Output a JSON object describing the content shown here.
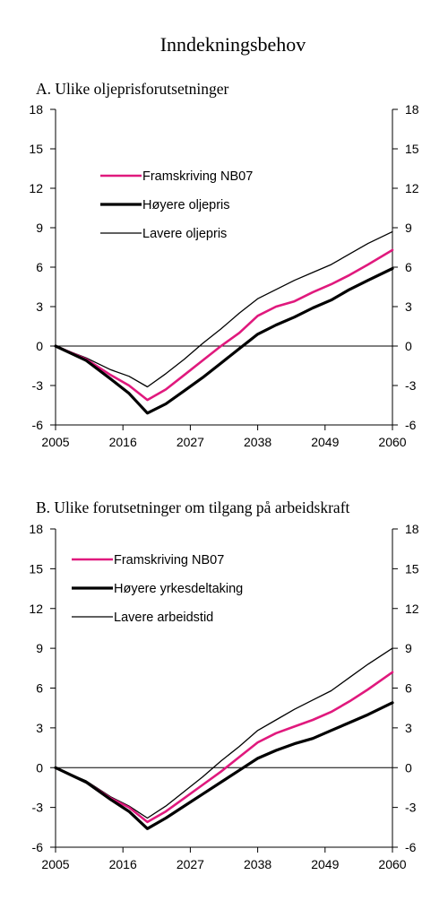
{
  "title": "Inndekningsbehov",
  "chart_data": [
    {
      "type": "line",
      "title": "A. Ulike oljeprisforutsetninger",
      "xlabel": "",
      "ylabel": "",
      "xlim": [
        2005,
        2060
      ],
      "ylim": [
        -6,
        18
      ],
      "xticks": [
        2005,
        2016,
        2027,
        2038,
        2049,
        2060
      ],
      "yticks": [
        -6,
        -3,
        0,
        3,
        6,
        9,
        12,
        15,
        18
      ],
      "grid": false,
      "legend_position": "upper-left",
      "series": [
        {
          "name": "Framskriving NB07",
          "color": "#e0197d",
          "stroke": "medium",
          "x": [
            2005,
            2010,
            2014,
            2017,
            2020,
            2023,
            2026,
            2029,
            2032,
            2035,
            2038,
            2041,
            2044,
            2047,
            2050,
            2053,
            2056,
            2060
          ],
          "values": [
            0,
            -1.0,
            -2.2,
            -3.0,
            -4.1,
            -3.3,
            -2.2,
            -1.1,
            0,
            1.0,
            2.3,
            3.0,
            3.4,
            4.1,
            4.7,
            5.4,
            6.2,
            7.3
          ]
        },
        {
          "name": "Høyere oljepris",
          "color": "#000000",
          "stroke": "thick",
          "x": [
            2005,
            2010,
            2014,
            2017,
            2020,
            2023,
            2026,
            2029,
            2032,
            2035,
            2038,
            2041,
            2044,
            2047,
            2050,
            2053,
            2056,
            2060
          ],
          "values": [
            0,
            -1.1,
            -2.5,
            -3.6,
            -5.1,
            -4.4,
            -3.4,
            -2.4,
            -1.3,
            -0.2,
            0.9,
            1.6,
            2.2,
            2.9,
            3.5,
            4.3,
            5.0,
            5.9
          ]
        },
        {
          "name": "Lavere oljepris",
          "color": "#000000",
          "stroke": "thin",
          "x": [
            2005,
            2010,
            2014,
            2017,
            2020,
            2023,
            2026,
            2029,
            2032,
            2035,
            2038,
            2041,
            2044,
            2047,
            2050,
            2053,
            2056,
            2060
          ],
          "values": [
            0,
            -0.9,
            -1.8,
            -2.3,
            -3.1,
            -2.1,
            -1.0,
            0.2,
            1.3,
            2.5,
            3.6,
            4.3,
            5.0,
            5.6,
            6.2,
            7.0,
            7.8,
            8.7
          ]
        }
      ]
    },
    {
      "type": "line",
      "title": "B. Ulike forutsetninger om tilgang på arbeidskraft",
      "xlabel": "",
      "ylabel": "",
      "xlim": [
        2005,
        2060
      ],
      "ylim": [
        -6,
        18
      ],
      "xticks": [
        2005,
        2016,
        2027,
        2038,
        2049,
        2060
      ],
      "yticks": [
        -6,
        -3,
        0,
        3,
        6,
        9,
        12,
        15,
        18
      ],
      "grid": false,
      "legend_position": "upper-left",
      "series": [
        {
          "name": "Framskriving NB07",
          "color": "#e0197d",
          "stroke": "medium",
          "x": [
            2005,
            2010,
            2014,
            2017,
            2020,
            2023,
            2026,
            2029,
            2032,
            2035,
            2038,
            2041,
            2044,
            2047,
            2050,
            2053,
            2056,
            2060
          ],
          "values": [
            0,
            -1.1,
            -2.3,
            -3.0,
            -4.1,
            -3.3,
            -2.3,
            -1.3,
            -0.3,
            0.8,
            1.9,
            2.6,
            3.1,
            3.6,
            4.2,
            5.0,
            5.9,
            7.2
          ]
        },
        {
          "name": "Høyere yrkesdeltaking",
          "color": "#000000",
          "stroke": "thick",
          "x": [
            2005,
            2010,
            2014,
            2017,
            2020,
            2023,
            2026,
            2029,
            2032,
            2035,
            2038,
            2041,
            2044,
            2047,
            2050,
            2053,
            2056,
            2060
          ],
          "values": [
            0,
            -1.1,
            -2.4,
            -3.3,
            -4.6,
            -3.8,
            -2.9,
            -2.0,
            -1.1,
            -0.2,
            0.7,
            1.3,
            1.8,
            2.2,
            2.8,
            3.4,
            4.0,
            4.9
          ]
        },
        {
          "name": "Lavere arbeidstid",
          "color": "#000000",
          "stroke": "thin",
          "x": [
            2005,
            2010,
            2014,
            2017,
            2020,
            2023,
            2026,
            2029,
            2032,
            2035,
            2038,
            2041,
            2044,
            2047,
            2050,
            2053,
            2056,
            2060
          ],
          "values": [
            0,
            -1.0,
            -2.2,
            -2.9,
            -3.8,
            -2.9,
            -1.8,
            -0.7,
            0.5,
            1.6,
            2.8,
            3.6,
            4.4,
            5.1,
            5.8,
            6.8,
            7.8,
            9.0
          ]
        }
      ]
    }
  ]
}
